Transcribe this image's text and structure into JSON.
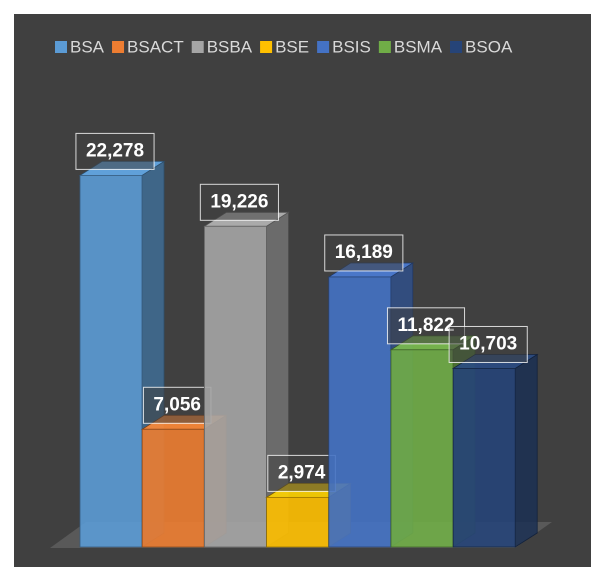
{
  "chart_data": {
    "type": "bar",
    "series": [
      {
        "name": "BSA",
        "color": "#5b9bd5",
        "values": [
          22278
        ],
        "value_labels": [
          "22,278"
        ]
      },
      {
        "name": "BSACT",
        "color": "#ed7d31",
        "values": [
          7056
        ],
        "value_labels": [
          "7,056"
        ]
      },
      {
        "name": "BSBA",
        "color": "#a5a5a5",
        "values": [
          19226
        ],
        "value_labels": [
          "19,226"
        ]
      },
      {
        "name": "BSE",
        "color": "#ffc000",
        "values": [
          2974
        ],
        "value_labels": [
          "2,974"
        ]
      },
      {
        "name": "BSIS",
        "color": "#4472c4",
        "values": [
          16189
        ],
        "value_labels": [
          "16,189"
        ]
      },
      {
        "name": "BSMA",
        "color": "#70ad47",
        "values": [
          11822
        ],
        "value_labels": [
          "11,822"
        ]
      },
      {
        "name": "BSOA",
        "color": "#264478",
        "values": [
          10703
        ],
        "value_labels": [
          "10,703"
        ]
      }
    ],
    "ylim": [
      0,
      25000
    ],
    "legend": "top"
  }
}
